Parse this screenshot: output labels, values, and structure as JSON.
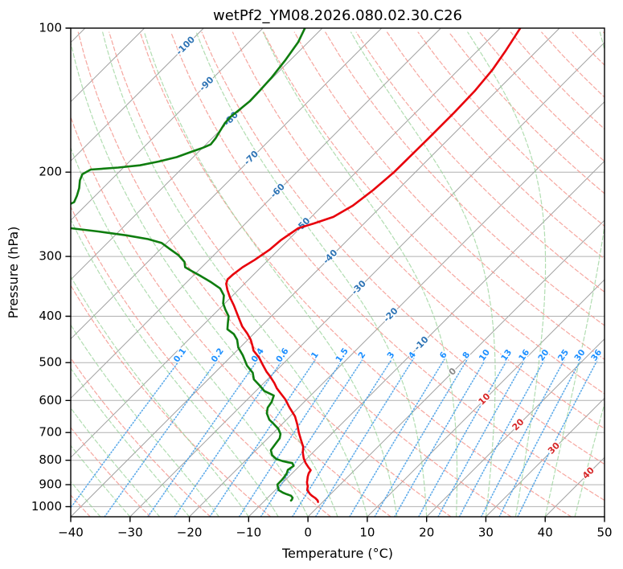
{
  "title": "wetPf2_YM08.2026.080.02.30.C26",
  "axes": {
    "xlabel": "Temperature (°C)",
    "ylabel": "Pressure (hPa)",
    "x_ticks": [
      {
        "v": -40,
        "label": "−40"
      },
      {
        "v": -30,
        "label": "−30"
      },
      {
        "v": -20,
        "label": "−20"
      },
      {
        "v": -10,
        "label": "−10"
      },
      {
        "v": 0,
        "label": "0"
      },
      {
        "v": 10,
        "label": "10"
      },
      {
        "v": 20,
        "label": "20"
      },
      {
        "v": 30,
        "label": "30"
      },
      {
        "v": 40,
        "label": "40"
      },
      {
        "v": 50,
        "label": "50"
      }
    ],
    "y_ticks": [
      {
        "v": 100,
        "label": "100"
      },
      {
        "v": 200,
        "label": "200"
      },
      {
        "v": 300,
        "label": "300"
      },
      {
        "v": 400,
        "label": "400"
      },
      {
        "v": 500,
        "label": "500"
      },
      {
        "v": 600,
        "label": "600"
      },
      {
        "v": 700,
        "label": "700"
      },
      {
        "v": 800,
        "label": "800"
      },
      {
        "v": 900,
        "label": "900"
      },
      {
        "v": 1000,
        "label": "1000"
      }
    ]
  },
  "chart_data": {
    "type": "line",
    "diagram": "skew-T log-p sounding",
    "xlim": [
      -40,
      50
    ],
    "ylim_hpa": [
      1050,
      100
    ],
    "skew_deg": 45,
    "grid": true,
    "isotherms": {
      "start_c": -120,
      "end_c": 50,
      "step_c": 10
    },
    "dry_adiabats": {
      "start_c": -40,
      "end_c": 200,
      "step_c": 10
    },
    "moist_adiabats": {
      "start_c": -40,
      "end_c": 45,
      "step_c": 5
    },
    "mixing_ratio_g_kg": [
      0.1,
      0.2,
      0.4,
      0.6,
      1,
      1.5,
      2,
      3,
      4,
      6,
      8,
      10,
      13,
      16,
      20,
      25,
      30,
      36
    ],
    "mixing_label_pressure_hpa": 483,
    "isotherm_labels": [
      {
        "t": -100,
        "p": 109
      },
      {
        "t": -90,
        "p": 131
      },
      {
        "t": -80,
        "p": 155
      },
      {
        "t": -70,
        "p": 187
      },
      {
        "t": -60,
        "p": 219
      },
      {
        "t": -50,
        "p": 258
      },
      {
        "t": -40,
        "p": 301
      },
      {
        "t": -30,
        "p": 349
      },
      {
        "t": -20,
        "p": 398
      },
      {
        "t": -10,
        "p": 457
      },
      {
        "t": 0,
        "p": 523
      },
      {
        "t": 10,
        "p": 597
      },
      {
        "t": 20,
        "p": 675
      },
      {
        "t": 30,
        "p": 756
      },
      {
        "t": 40,
        "p": 852
      }
    ],
    "series": [
      {
        "name": "temperature",
        "points_p_t": [
          [
            98.5,
            -46.8
          ],
          [
            105,
            -46.0
          ],
          [
            112,
            -45.2
          ],
          [
            122,
            -44.3
          ],
          [
            135,
            -43.7
          ],
          [
            150,
            -43.5
          ],
          [
            170,
            -43.5
          ],
          [
            200,
            -43.6
          ],
          [
            218,
            -44.1
          ],
          [
            235,
            -44.9
          ],
          [
            248,
            -46.3
          ],
          [
            256,
            -48.5
          ],
          [
            262,
            -50.3
          ],
          [
            277,
            -51.2
          ],
          [
            290,
            -51.5
          ],
          [
            305,
            -52.3
          ],
          [
            316,
            -53.1
          ],
          [
            327,
            -53.5
          ],
          [
            335,
            -53.6
          ],
          [
            342,
            -53.1
          ],
          [
            352,
            -51.9
          ],
          [
            365,
            -50.2
          ],
          [
            380,
            -48.1
          ],
          [
            400,
            -45.6
          ],
          [
            420,
            -43.2
          ],
          [
            435,
            -41.1
          ],
          [
            448,
            -39.5
          ],
          [
            460,
            -38.3
          ],
          [
            472,
            -37.2
          ],
          [
            488,
            -35.1
          ],
          [
            504,
            -33.4
          ],
          [
            522,
            -31.5
          ],
          [
            534,
            -30.1
          ],
          [
            552,
            -28.2
          ],
          [
            566,
            -26.9
          ],
          [
            580,
            -25.4
          ],
          [
            597,
            -23.6
          ],
          [
            620,
            -21.6
          ],
          [
            648,
            -19.1
          ],
          [
            673,
            -17.4
          ],
          [
            701,
            -15.7
          ],
          [
            726,
            -14.1
          ],
          [
            750,
            -12.6
          ],
          [
            771,
            -11.7
          ],
          [
            792,
            -10.6
          ],
          [
            810,
            -9.5
          ],
          [
            827,
            -8.3
          ],
          [
            839,
            -7.4
          ],
          [
            852,
            -7.2
          ],
          [
            866,
            -6.8
          ],
          [
            880,
            -6.3
          ],
          [
            889,
            -6.0
          ],
          [
            898,
            -5.6
          ],
          [
            906,
            -5.2
          ],
          [
            915,
            -4.9
          ],
          [
            924,
            -4.6
          ],
          [
            933,
            -4.0
          ],
          [
            941,
            -3.5
          ],
          [
            950,
            -2.8
          ],
          [
            960,
            -1.9
          ],
          [
            971,
            -1.1
          ],
          [
            978,
            -0.8
          ]
        ]
      },
      {
        "name": "dewpoint",
        "points_p_t": [
          [
            98.5,
            -83.2
          ],
          [
            107,
            -81.7
          ],
          [
            117,
            -80.8
          ],
          [
            127,
            -80.2
          ],
          [
            135,
            -80.0
          ],
          [
            142,
            -79.9
          ],
          [
            148,
            -80.2
          ],
          [
            153,
            -80.5
          ],
          [
            158,
            -80.4
          ],
          [
            164,
            -79.9
          ],
          [
            170,
            -79.4
          ],
          [
            175,
            -79.2
          ],
          [
            178,
            -80.0
          ],
          [
            181,
            -81.1
          ],
          [
            186,
            -82.8
          ],
          [
            190,
            -85.1
          ],
          [
            193.5,
            -87.6
          ],
          [
            195.6,
            -90.9
          ],
          [
            197.5,
            -95.2
          ],
          [
            202,
            -95.8
          ],
          [
            208,
            -95.2
          ],
          [
            216,
            -94.0
          ],
          [
            224,
            -93.1
          ],
          [
            231,
            -92.5
          ],
          [
            238,
            -93.6
          ],
          [
            245,
            -95.8
          ],
          [
            252,
            -97.5
          ],
          [
            257,
            -93.5
          ],
          [
            262,
            -88.6
          ],
          [
            266,
            -83.5
          ],
          [
            271,
            -78.1
          ],
          [
            276,
            -73.8
          ],
          [
            281,
            -70.9
          ],
          [
            290,
            -68.3
          ],
          [
            298,
            -66.0
          ],
          [
            308,
            -63.8
          ],
          [
            316,
            -62.8
          ],
          [
            322,
            -61.0
          ],
          [
            330,
            -58.6
          ],
          [
            340,
            -55.8
          ],
          [
            350,
            -53.3
          ],
          [
            362,
            -51.5
          ],
          [
            376,
            -50.3
          ],
          [
            388,
            -48.8
          ],
          [
            400,
            -47.2
          ],
          [
            413,
            -46.2
          ],
          [
            426,
            -45.2
          ],
          [
            436,
            -43.3
          ],
          [
            448,
            -41.8
          ],
          [
            465,
            -40.3
          ],
          [
            483,
            -38.2
          ],
          [
            507,
            -35.8
          ],
          [
            525,
            -33.6
          ],
          [
            542,
            -32.3
          ],
          [
            559,
            -30.2
          ],
          [
            573,
            -28.6
          ],
          [
            586,
            -26.2
          ],
          [
            604,
            -25.5
          ],
          [
            621,
            -25.2
          ],
          [
            638,
            -24.4
          ],
          [
            658,
            -22.9
          ],
          [
            672,
            -21.4
          ],
          [
            688,
            -19.8
          ],
          [
            705,
            -18.6
          ],
          [
            720,
            -18.0
          ],
          [
            737,
            -17.8
          ],
          [
            762,
            -17.5
          ],
          [
            781,
            -16.4
          ],
          [
            795,
            -15.1
          ],
          [
            803,
            -13.7
          ],
          [
            808,
            -12.5
          ],
          [
            811,
            -11.7
          ],
          [
            822,
            -11.0
          ],
          [
            838,
            -11.3
          ],
          [
            852,
            -10.9
          ],
          [
            868,
            -10.7
          ],
          [
            882,
            -10.6
          ],
          [
            899,
            -10.6
          ],
          [
            912,
            -10.0
          ],
          [
            924,
            -9.4
          ],
          [
            935,
            -8.3
          ],
          [
            942,
            -7.4
          ],
          [
            949,
            -6.4
          ],
          [
            958,
            -5.8
          ],
          [
            967,
            -5.6
          ],
          [
            971,
            -5.6
          ]
        ]
      }
    ]
  },
  "palette": {
    "temperature": "#e8000b",
    "dewpoint": "#0f7d0f",
    "isotherm": "#a0a0a0",
    "pressure_grid": "#b0b0b0",
    "dry_adiabat": "#f4978e",
    "moist_adiabat": "#9ed49e",
    "mixing_ratio": "#4da2e8",
    "label_negative": "#2e74b5",
    "label_zero": "#8a8a8a",
    "label_positive": "#d62728",
    "mixing_label": "#1e90ff",
    "spine": "#000000"
  }
}
